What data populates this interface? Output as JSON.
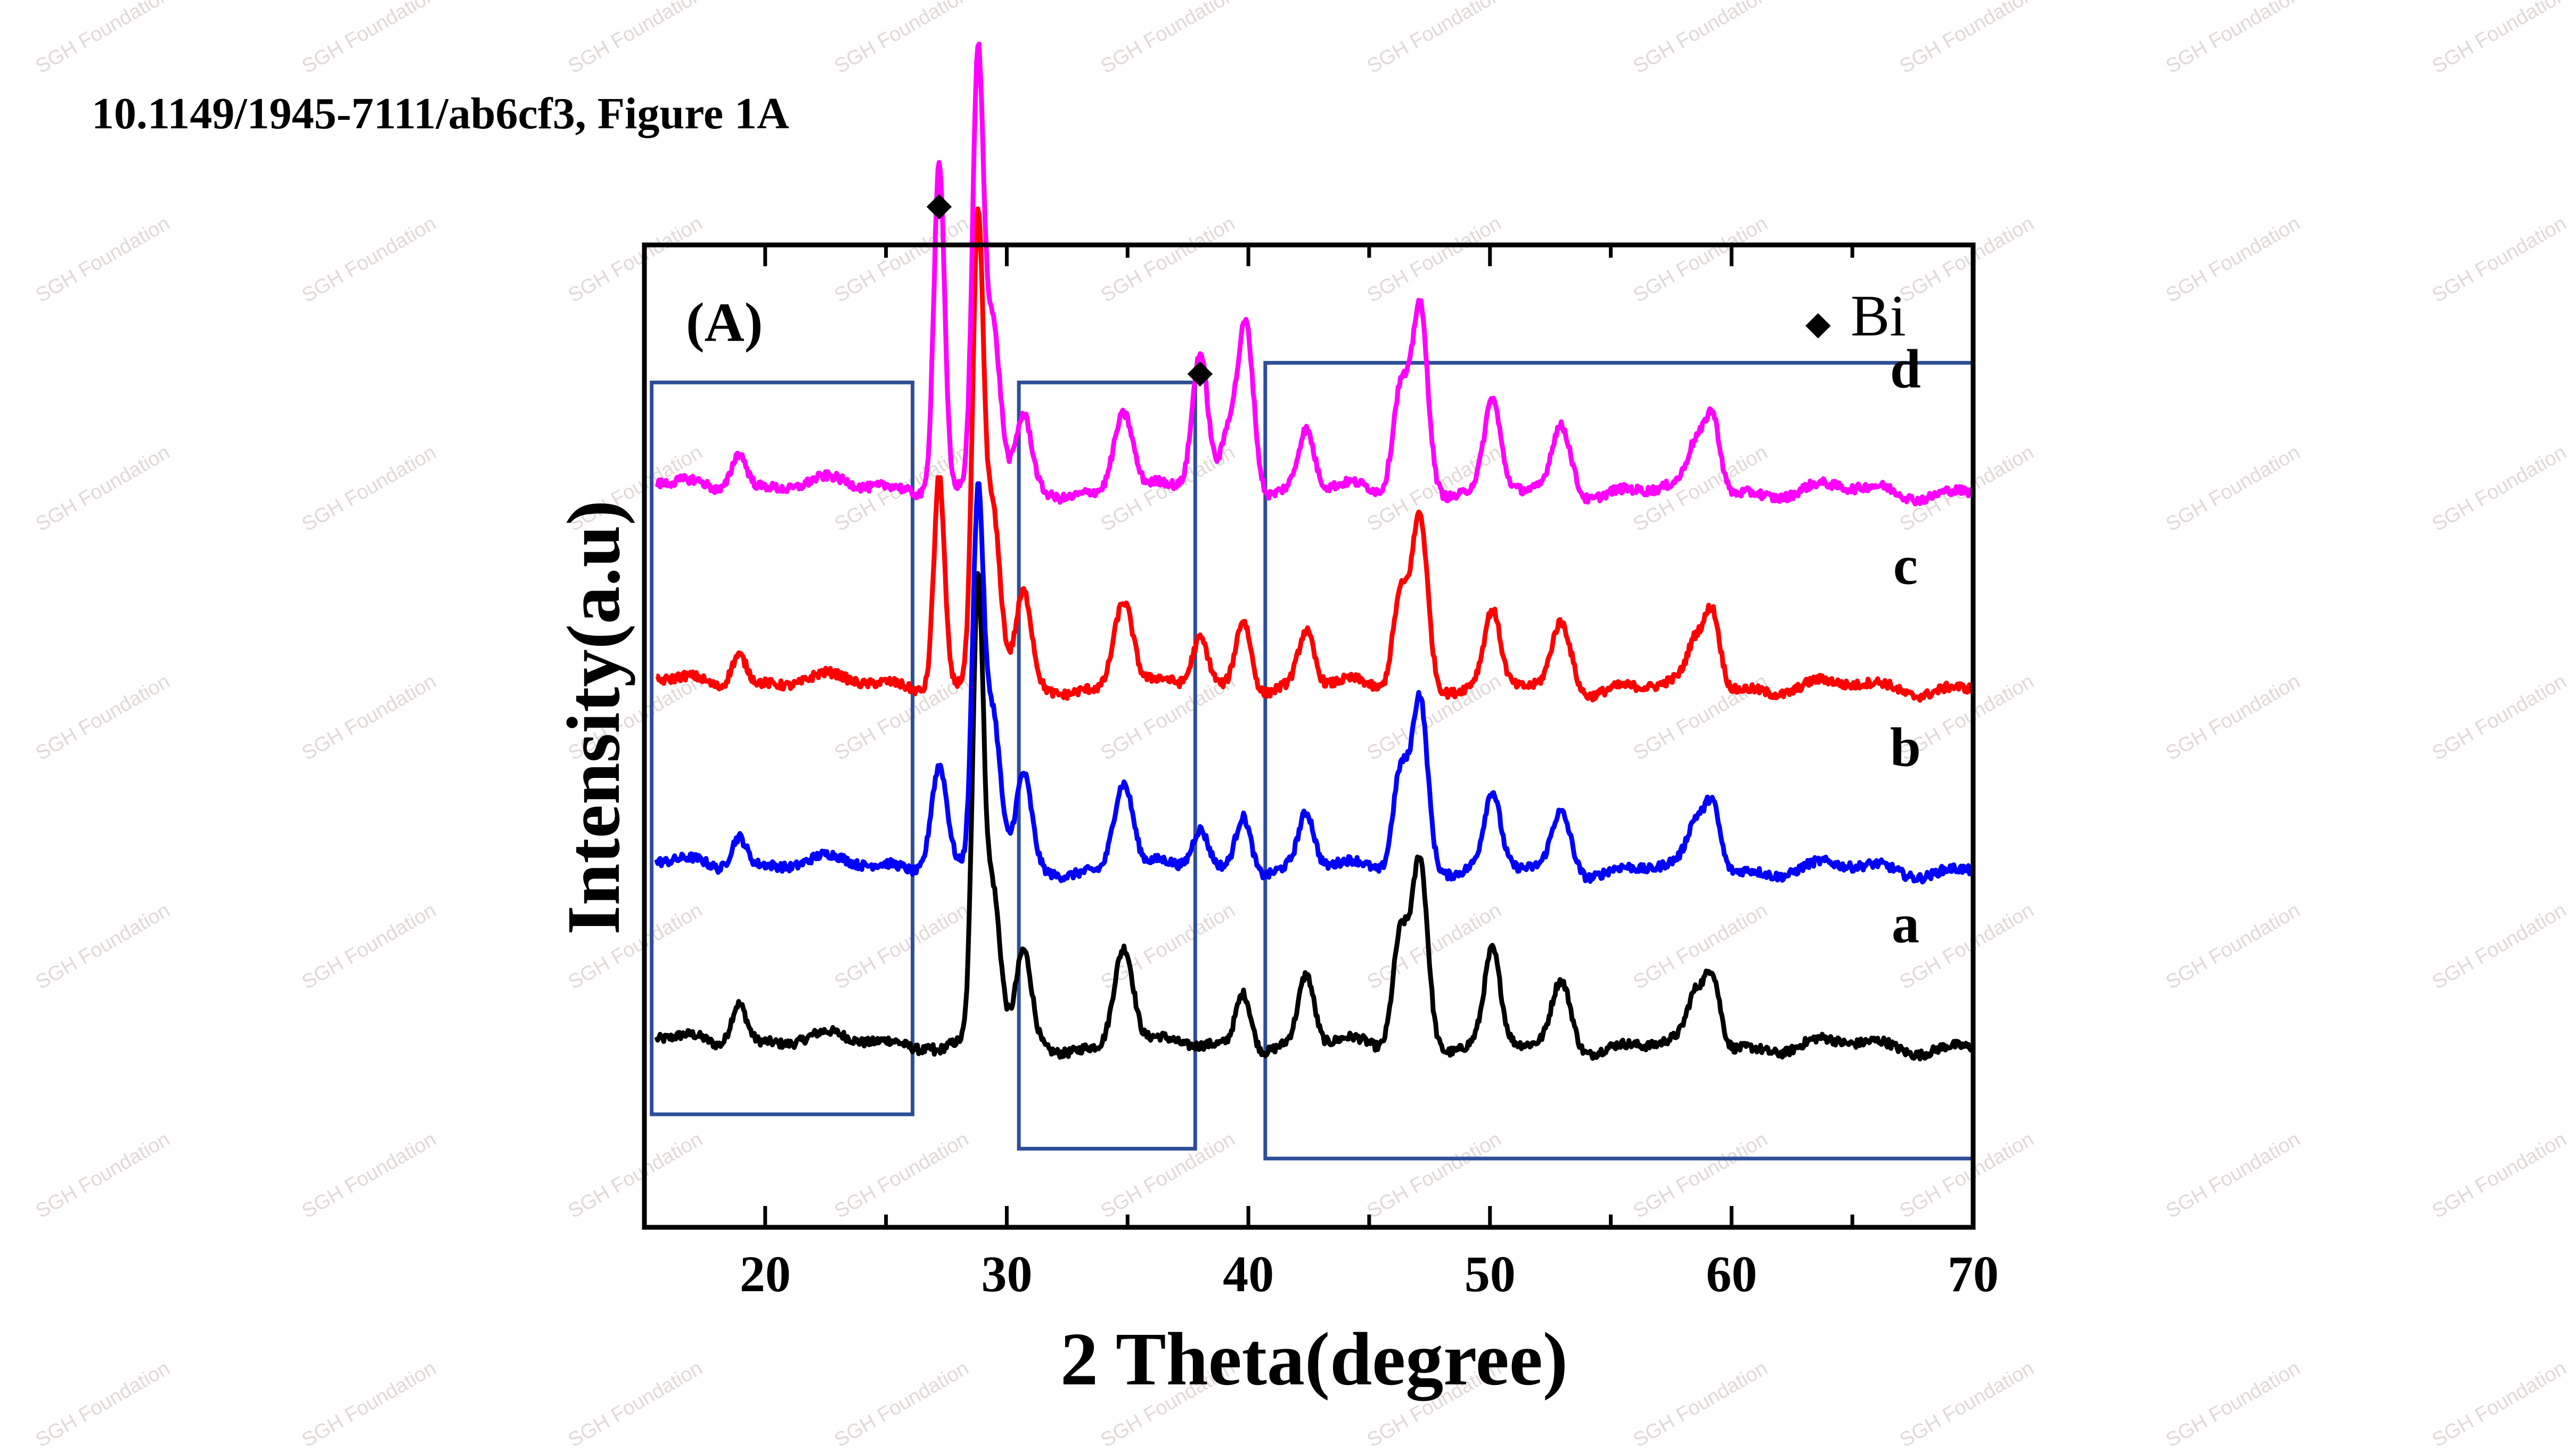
{
  "page": {
    "caption": "10.1149/1945-7111/ab6cf3, Figure 1A",
    "watermark": "SGH Foundation"
  },
  "chart_data": {
    "type": "line",
    "title": "",
    "panel_label": "(A)",
    "xlabel": "2 Theta(degree)",
    "ylabel": "Intensity(a.u)",
    "xlim": [
      15,
      70
    ],
    "ylim": [
      0,
      10
    ],
    "x_ticks": [
      20,
      30,
      40,
      50,
      60,
      70
    ],
    "legend": {
      "marker": "◆",
      "label": "Bi",
      "position": "top-right"
    },
    "series": [
      {
        "name": "a",
        "color": "#000000",
        "baseline": 1.85,
        "x_start": 15.5,
        "x_end": 70,
        "peaks": [
          {
            "x": 18.9,
            "h": 0.45
          },
          {
            "x": 28.8,
            "h": 4.5
          },
          {
            "x": 29.4,
            "h": 1.6
          },
          {
            "x": 30.7,
            "h": 0.9
          },
          {
            "x": 34.6,
            "h": 0.55
          },
          {
            "x": 35.0,
            "h": 0.7
          },
          {
            "x": 39.8,
            "h": 0.6
          },
          {
            "x": 42.4,
            "h": 0.7
          },
          {
            "x": 46.3,
            "h": 1.2
          },
          {
            "x": 47.1,
            "h": 1.9
          },
          {
            "x": 50.1,
            "h": 0.9
          },
          {
            "x": 52.8,
            "h": 0.45
          },
          {
            "x": 53.2,
            "h": 0.35
          },
          {
            "x": 58.5,
            "h": 0.45
          },
          {
            "x": 59.2,
            "h": 0.75
          }
        ]
      },
      {
        "name": "b",
        "color": "#0000ff",
        "baseline": 3.65,
        "x_start": 15.5,
        "x_end": 70,
        "peaks": [
          {
            "x": 18.9,
            "h": 0.35
          },
          {
            "x": 27.2,
            "h": 1.1
          },
          {
            "x": 28.8,
            "h": 3.6
          },
          {
            "x": 29.4,
            "h": 1.6
          },
          {
            "x": 30.7,
            "h": 0.9
          },
          {
            "x": 34.6,
            "h": 0.5
          },
          {
            "x": 35.0,
            "h": 0.6
          },
          {
            "x": 38.0,
            "h": 0.4
          },
          {
            "x": 39.8,
            "h": 0.6
          },
          {
            "x": 42.4,
            "h": 0.55
          },
          {
            "x": 46.3,
            "h": 1.05
          },
          {
            "x": 47.1,
            "h": 1.75
          },
          {
            "x": 50.1,
            "h": 0.7
          },
          {
            "x": 52.8,
            "h": 0.4
          },
          {
            "x": 53.2,
            "h": 0.3
          },
          {
            "x": 58.5,
            "h": 0.4
          },
          {
            "x": 59.2,
            "h": 0.7
          }
        ]
      },
      {
        "name": "c",
        "color": "#ff0000",
        "baseline": 5.5,
        "x_start": 15.5,
        "x_end": 70,
        "peaks": [
          {
            "x": 18.9,
            "h": 0.35
          },
          {
            "x": 27.2,
            "h": 2.2
          },
          {
            "x": 28.8,
            "h": 4.5
          },
          {
            "x": 29.4,
            "h": 1.8
          },
          {
            "x": 30.7,
            "h": 0.9
          },
          {
            "x": 34.6,
            "h": 0.5
          },
          {
            "x": 35.0,
            "h": 0.6
          },
          {
            "x": 38.0,
            "h": 0.5
          },
          {
            "x": 39.8,
            "h": 0.75
          },
          {
            "x": 42.4,
            "h": 0.55
          },
          {
            "x": 46.3,
            "h": 1.0
          },
          {
            "x": 47.1,
            "h": 1.75
          },
          {
            "x": 50.1,
            "h": 0.7
          },
          {
            "x": 52.8,
            "h": 0.45
          },
          {
            "x": 53.2,
            "h": 0.35
          },
          {
            "x": 58.5,
            "h": 0.4
          },
          {
            "x": 59.2,
            "h": 0.8
          }
        ]
      },
      {
        "name": "d",
        "color": "#ff00ff",
        "baseline": 7.5,
        "x_start": 15.5,
        "x_end": 70,
        "peaks": [
          {
            "x": 18.9,
            "h": 0.4
          },
          {
            "x": 27.2,
            "h": 3.4
          },
          {
            "x": 28.8,
            "h": 4.2
          },
          {
            "x": 29.4,
            "h": 1.7
          },
          {
            "x": 30.7,
            "h": 0.7
          },
          {
            "x": 34.6,
            "h": 0.45
          },
          {
            "x": 35.0,
            "h": 0.55
          },
          {
            "x": 38.0,
            "h": 1.4
          },
          {
            "x": 39.2,
            "h": 0.6
          },
          {
            "x": 39.9,
            "h": 1.75
          },
          {
            "x": 42.4,
            "h": 0.6
          },
          {
            "x": 46.3,
            "h": 1.1
          },
          {
            "x": 47.1,
            "h": 1.9
          },
          {
            "x": 50.1,
            "h": 0.85
          },
          {
            "x": 52.8,
            "h": 0.45
          },
          {
            "x": 53.2,
            "h": 0.35
          },
          {
            "x": 58.5,
            "h": 0.4
          },
          {
            "x": 59.2,
            "h": 0.8
          }
        ]
      }
    ],
    "bi_markers": [
      {
        "x": 27.2,
        "y": 10.3
      },
      {
        "x": 38.0,
        "y": 8.6
      }
    ],
    "highlight_boxes": [
      {
        "x_range": [
          15.3,
          26.1
        ],
        "y_range": [
          1.15,
          8.6
        ]
      },
      {
        "x_range": [
          30.5,
          37.8
        ],
        "y_range": [
          0.8,
          8.6
        ]
      },
      {
        "x_range": [
          40.7,
          70.0
        ],
        "y_range": [
          0.7,
          8.8
        ]
      }
    ],
    "box_color": "#2e4f97"
  }
}
